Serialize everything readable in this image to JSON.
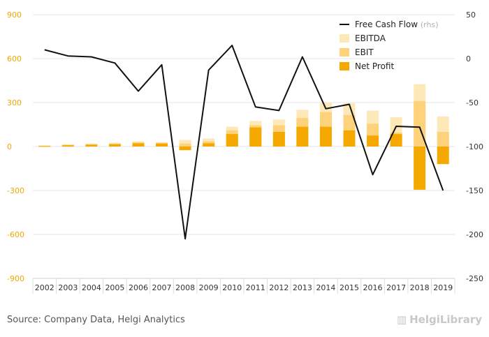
{
  "chart_data": {
    "type": "bar",
    "stacked": false,
    "categories": [
      "2002",
      "2003",
      "2004",
      "2005",
      "2006",
      "2007",
      "2008",
      "2009",
      "2010",
      "2011",
      "2012",
      "2013",
      "2014",
      "2015",
      "2016",
      "2017",
      "2018",
      "2019"
    ],
    "series": [
      {
        "name": "EBITDA",
        "axis": "left",
        "color": "#fde8b8",
        "values": [
          8,
          15,
          20,
          25,
          35,
          30,
          45,
          55,
          135,
          175,
          185,
          250,
          300,
          295,
          245,
          200,
          425,
          205
        ]
      },
      {
        "name": "EBIT",
        "axis": "left",
        "color": "#fdd27a",
        "values": [
          5,
          12,
          16,
          20,
          28,
          25,
          20,
          35,
          110,
          145,
          145,
          195,
          235,
          215,
          155,
          95,
          310,
          100
        ]
      },
      {
        "name": "Net Profit",
        "axis": "left",
        "color": "#f5a800",
        "values": [
          3,
          8,
          12,
          15,
          22,
          20,
          -25,
          22,
          85,
          130,
          100,
          135,
          135,
          110,
          75,
          85,
          -295,
          -120
        ]
      },
      {
        "name": "Free Cash Flow",
        "axis": "right",
        "type": "line",
        "color": "#111111",
        "values": [
          10,
          3,
          2,
          -5,
          -37,
          -7,
          -205,
          -13,
          15,
          -55,
          -59,
          2,
          -57,
          -52,
          -132,
          -77,
          -78,
          -150
        ]
      }
    ],
    "y_left": {
      "ylim": [
        -900,
        900
      ],
      "ticks": [
        900,
        600,
        300,
        0,
        -300,
        -600,
        -900
      ],
      "color": "#f0a800"
    },
    "y_right": {
      "ylim": [
        -250,
        50
      ],
      "ticks": [
        50,
        0,
        -50,
        -100,
        -150,
        -200,
        -250
      ],
      "color": "#333333"
    },
    "grid": true,
    "legend_position": "top-right",
    "legend": {
      "line_label": "Free Cash Flow",
      "line_suffix": "(rhs)"
    }
  },
  "footer": {
    "source": "Source: Company Data, Helgi Analytics",
    "logo": "HelgiLibrary"
  }
}
